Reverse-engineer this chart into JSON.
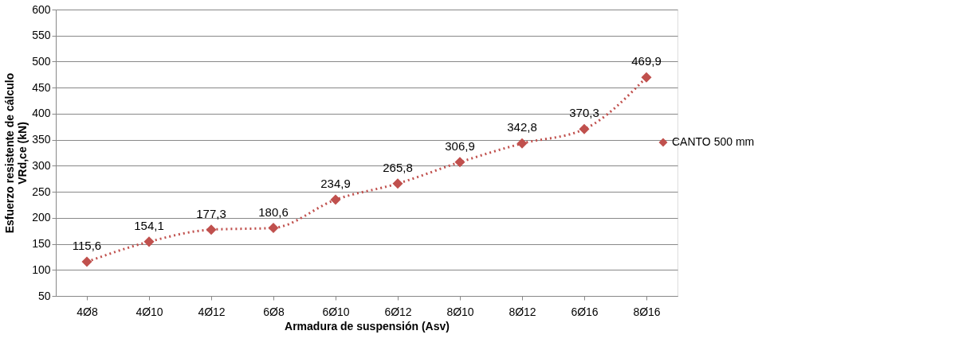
{
  "chart_data": {
    "type": "line",
    "xlabel": "Armadura de suspensión (Asv)",
    "ylabel": "Esfuerzo resistente de cálculo\nVRd,ce  (kN)",
    "categories": [
      "4Ø8",
      "4Ø10",
      "4Ø12",
      "6Ø8",
      "6Ø10",
      "6Ø12",
      "8Ø10",
      "8Ø12",
      "6Ø16",
      "8Ø16"
    ],
    "series": [
      {
        "name": "CANTO 500 mm",
        "color": "#c0504d",
        "values": [
          115.6,
          154.1,
          177.3,
          180.6,
          234.9,
          265.8,
          306.9,
          342.8,
          370.3,
          469.9
        ],
        "value_labels": [
          "115,6",
          "154,1",
          "177,3",
          "180,6",
          "234,9",
          "265,8",
          "306,9",
          "342,8",
          "370,3",
          "469,9"
        ]
      }
    ],
    "ylim": [
      50,
      600
    ],
    "yticks": [
      50,
      100,
      150,
      200,
      250,
      300,
      350,
      400,
      450,
      500,
      550,
      600
    ],
    "grid": "y",
    "legend": "right",
    "marker": "diamond",
    "line_style": "dotted"
  }
}
